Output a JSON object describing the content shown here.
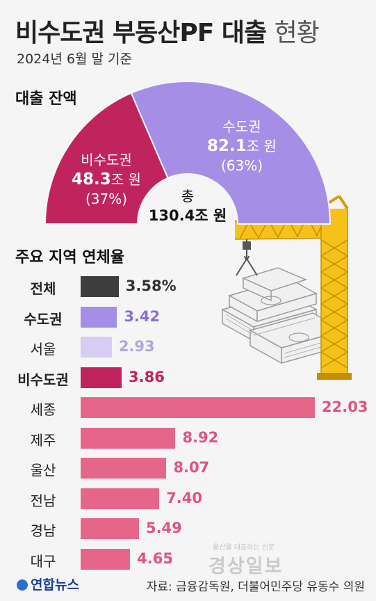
{
  "header": {
    "title_main": "비수도권 부동산PF 대출",
    "title_light": "현황",
    "subtitle": "2024년 6월 말 기준"
  },
  "balance": {
    "section_title": "대출 잔액",
    "total_label": "총",
    "total_value": "130.4조 원",
    "capital": {
      "name": "수도권",
      "value": "82.1",
      "unit": "조 원",
      "pct": "(63%)",
      "color": "#a58ee6"
    },
    "noncapital": {
      "name": "비수도권",
      "value": "48.3",
      "unit": "조 원",
      "pct": "(37%)",
      "color": "#c0245c"
    }
  },
  "delinquency": {
    "section_title": "주요 지역 연체율"
  },
  "chart_data": [
    {
      "type": "pie",
      "title": "대출 잔액",
      "unit": "조 원",
      "total": 130.4,
      "slices": [
        {
          "name": "비수도권",
          "value": 48.3,
          "pct": 37
        },
        {
          "name": "수도권",
          "value": 82.1,
          "pct": 63
        }
      ]
    },
    {
      "type": "bar",
      "orientation": "horizontal",
      "title": "주요 지역 연체율",
      "unit": "%",
      "categories": [
        "전체",
        "수도권",
        "서울",
        "비수도권",
        "세종",
        "제주",
        "울산",
        "전남",
        "경남",
        "대구"
      ],
      "values": [
        3.58,
        3.42,
        2.93,
        3.86,
        22.03,
        8.92,
        8.07,
        7.4,
        5.49,
        4.65
      ],
      "labels": [
        "3.58%",
        "3.42",
        "2.93",
        "3.86",
        "22.03",
        "8.92",
        "8.07",
        "7.40",
        "5.49",
        "4.65"
      ],
      "colors": [
        "#3d3d3d",
        "#a58ee6",
        "#d6cdf2",
        "#c0245c",
        "#e6668a",
        "#e6668a",
        "#e6668a",
        "#e6668a",
        "#e6668a",
        "#e6668a"
      ],
      "label_colors": [
        "#333333",
        "#8a6fd6",
        "#b2a3e0",
        "#c0245c",
        "#e0547e",
        "#e0547e",
        "#e0547e",
        "#e0547e",
        "#e0547e",
        "#e0547e"
      ],
      "bold_categories": [
        "전체",
        "수도권",
        "비수도권"
      ]
    }
  ],
  "footer": {
    "logo": "연합뉴스",
    "source": "자료: 금융감독원, 더불어민주당 유동수 의원",
    "watermark": "경상일보",
    "watermark_small": "울산을 대표하는 신문"
  }
}
